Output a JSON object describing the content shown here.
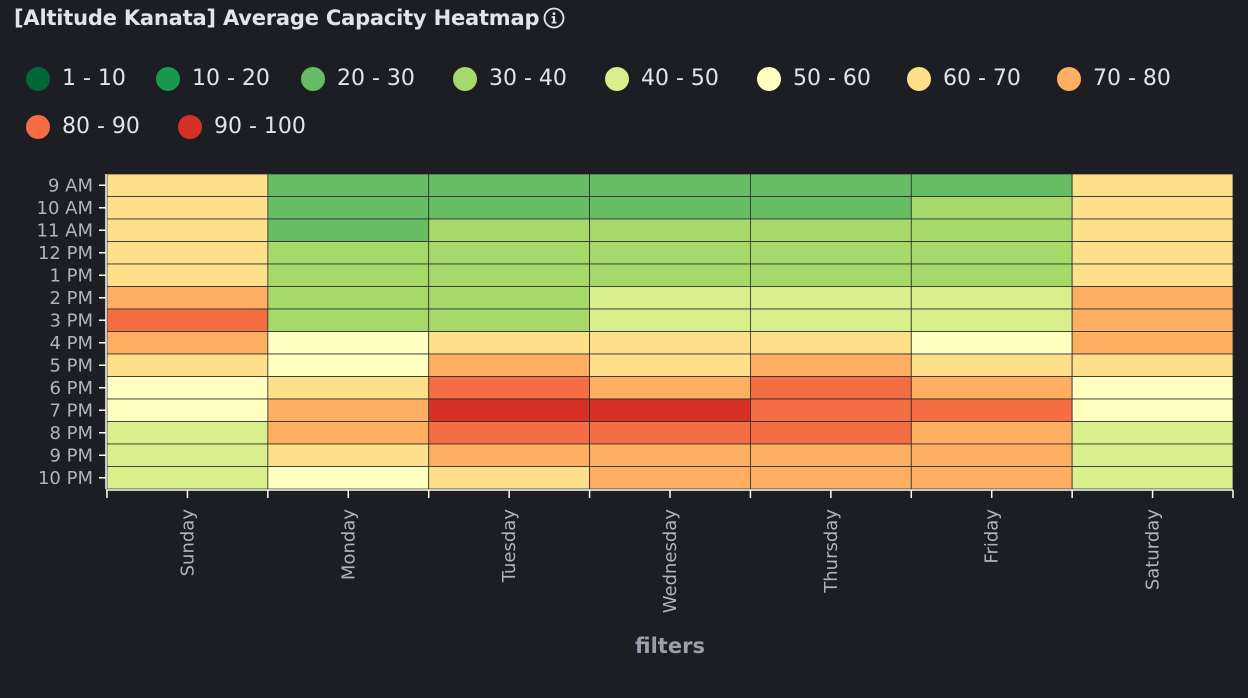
{
  "header": {
    "title": "[Altitude Kanata] Average Capacity Heatmap",
    "info_icon": "info-circle-icon"
  },
  "legend": [
    {
      "label": "1 - 10",
      "color": "#006837"
    },
    {
      "label": "10 - 20",
      "color": "#1a9850"
    },
    {
      "label": "20 - 30",
      "color": "#66bd63"
    },
    {
      "label": "30 - 40",
      "color": "#a6d96a"
    },
    {
      "label": "40 - 50",
      "color": "#d9ef8b"
    },
    {
      "label": "50 - 60",
      "color": "#ffffbf"
    },
    {
      "label": "60 - 70",
      "color": "#fee08b"
    },
    {
      "label": "70 - 80",
      "color": "#fdae61"
    },
    {
      "label": "80 - 90",
      "color": "#f46d43"
    },
    {
      "label": "90 - 100",
      "color": "#d73027"
    }
  ],
  "chart_data": {
    "type": "heatmap",
    "title": "[Altitude Kanata] Average Capacity Heatmap",
    "xlabel": "filters",
    "ylabel": "",
    "x_categories": [
      "Sunday",
      "Monday",
      "Tuesday",
      "Wednesday",
      "Thursday",
      "Friday",
      "Saturday"
    ],
    "y_categories": [
      "9 AM",
      "10 AM",
      "11 AM",
      "12 PM",
      "1 PM",
      "2 PM",
      "3 PM",
      "4 PM",
      "5 PM",
      "6 PM",
      "7 PM",
      "8 PM",
      "9 PM",
      "10 PM"
    ],
    "value_unit": "color bin index (0 = 1-10 ... 9 = 90-100)",
    "bins": [
      "1 - 10",
      "10 - 20",
      "20 - 30",
      "30 - 40",
      "40 - 50",
      "50 - 60",
      "60 - 70",
      "70 - 80",
      "80 - 90",
      "90 - 100"
    ],
    "values": [
      [
        6,
        2,
        2,
        2,
        2,
        2,
        6
      ],
      [
        6,
        2,
        2,
        2,
        2,
        3,
        6
      ],
      [
        6,
        2,
        3,
        3,
        3,
        3,
        6
      ],
      [
        6,
        3,
        3,
        3,
        3,
        3,
        6
      ],
      [
        6,
        3,
        3,
        3,
        3,
        3,
        6
      ],
      [
        7,
        3,
        3,
        4,
        4,
        4,
        7
      ],
      [
        8,
        3,
        3,
        4,
        4,
        4,
        7
      ],
      [
        7,
        5,
        6,
        6,
        6,
        5,
        7
      ],
      [
        6,
        5,
        7,
        6,
        7,
        6,
        6
      ],
      [
        5,
        6,
        8,
        7,
        8,
        7,
        5
      ],
      [
        5,
        7,
        9,
        9,
        8,
        8,
        5
      ],
      [
        4,
        7,
        8,
        8,
        8,
        7,
        4
      ],
      [
        4,
        6,
        7,
        7,
        7,
        7,
        4
      ],
      [
        4,
        5,
        6,
        7,
        7,
        7,
        4
      ]
    ],
    "grid": true,
    "legend_position": "top"
  }
}
